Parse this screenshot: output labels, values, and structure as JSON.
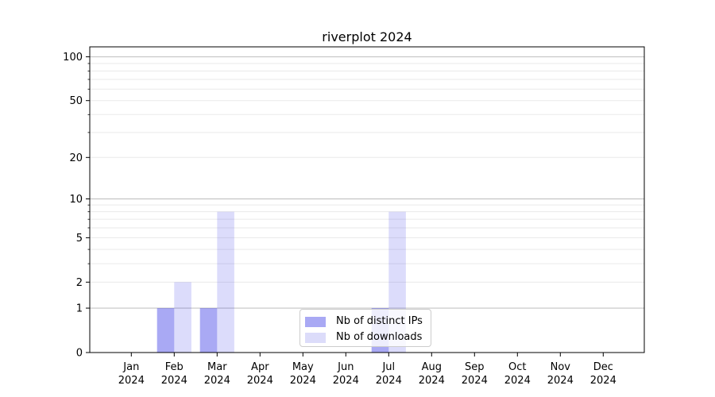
{
  "chart_data": {
    "type": "bar",
    "title": "riverplot 2024",
    "categories": [
      "Jan",
      "Feb",
      "Mar",
      "Apr",
      "May",
      "Jun",
      "Jul",
      "Aug",
      "Sep",
      "Oct",
      "Nov",
      "Dec"
    ],
    "x_year": "2024",
    "series": [
      {
        "name": "Nb of distinct IPs",
        "color": "rgba(40,40,228,0.40)",
        "legend_color": "#a9a9f4",
        "values": [
          0,
          1,
          1,
          0,
          0,
          0,
          1,
          0,
          0,
          0,
          0,
          0
        ]
      },
      {
        "name": "Nb of downloads",
        "color": "rgba(40,40,228,0.16)",
        "legend_color": "#dcdcfa",
        "values": [
          0,
          2,
          8,
          0,
          0,
          0,
          8,
          0,
          0,
          0,
          0,
          0
        ]
      }
    ],
    "yscale": "log1p",
    "ylim": [
      0,
      117
    ],
    "y_tick_labels": [
      0,
      1,
      2,
      5,
      10,
      20,
      50,
      100
    ],
    "y_major_gridlines": [
      1,
      10,
      100
    ],
    "y_minor_gridlines": [
      2,
      3,
      4,
      5,
      6,
      7,
      8,
      9,
      20,
      30,
      40,
      50,
      60,
      70,
      80,
      90
    ],
    "grid": true,
    "legend_position": "lower center"
  },
  "colors": {
    "major_grid": "#c4c4c4",
    "minor_grid": "#eaeaea",
    "axis": "#000000",
    "tick_label": "#000000",
    "background": "#ffffff"
  }
}
